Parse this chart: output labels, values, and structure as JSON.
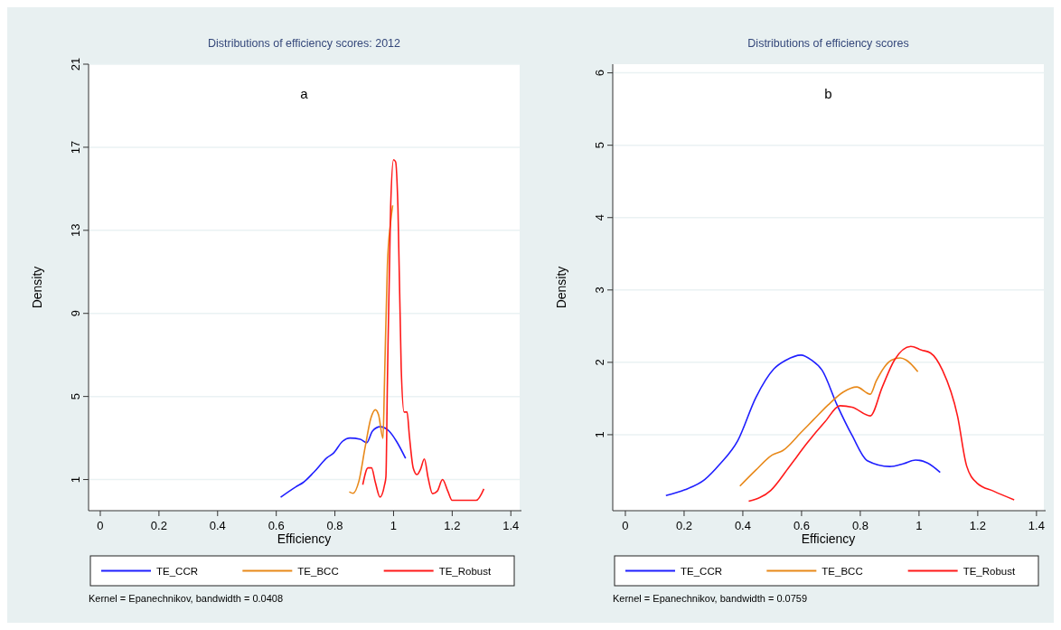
{
  "chart_data": [
    {
      "type": "line",
      "title": "Distributions of efficiency scores: 2012",
      "xlabel": "Efficiency",
      "ylabel": "Density",
      "annotations": [
        "a",
        "Kernel = Epanechnikov, bandwidth = 0.0408"
      ],
      "xlim": [
        -0.04,
        1.43
      ],
      "xticks": [
        0,
        0.2,
        0.4,
        0.6,
        0.8,
        1,
        1.2,
        1.4
      ],
      "ylim": [
        -0.5,
        21
      ],
      "yticks": [
        1,
        5,
        9,
        13,
        17,
        21
      ],
      "grid": "y",
      "legend": "bottom",
      "series": [
        {
          "name": "TE_CCR",
          "color": "#1f1fff",
          "x": [
            0.615,
            0.667,
            0.692,
            0.728,
            0.774,
            0.795,
            0.826,
            0.851,
            0.887,
            0.908,
            0.928,
            0.954,
            0.985,
            1.01,
            1.041
          ],
          "values": [
            0.15,
            0.65,
            0.86,
            1.35,
            2.06,
            2.27,
            2.84,
            3.0,
            2.94,
            2.77,
            3.33,
            3.54,
            3.33,
            2.84,
            2.02
          ]
        },
        {
          "name": "TE_BCC",
          "color": "#e8891a",
          "x": [
            0.849,
            0.862,
            0.882,
            0.903,
            0.923,
            0.938,
            0.949,
            0.964,
            0.969,
            0.979,
            0.99,
            0.997
          ],
          "values": [
            0.41,
            0.34,
            0.93,
            2.55,
            3.97,
            4.36,
            4.11,
            2.98,
            5.66,
            11.3,
            13.4,
            14.2
          ]
        },
        {
          "name": "TE_Robust",
          "color": "#ff1a1a",
          "x": [
            0.895,
            0.913,
            0.925,
            0.938,
            0.954,
            0.969,
            0.974,
            0.979,
            0.99,
            1.0,
            1.007,
            1.015,
            1.026,
            1.036,
            1.046,
            1.054,
            1.067,
            1.08,
            1.092,
            1.105,
            1.118,
            1.133,
            1.149,
            1.167,
            1.185,
            1.2,
            1.282,
            1.308
          ],
          "values": [
            0.75,
            1.56,
            1.56,
            0.86,
            0.15,
            0.72,
            1.14,
            5.66,
            14.1,
            16.4,
            16.3,
            14.1,
            6.4,
            4.25,
            4.25,
            3.1,
            1.56,
            1.24,
            1.5,
            1.99,
            1.07,
            0.32,
            0.44,
            1.0,
            0.44,
            0.0,
            0.0,
            0.55
          ]
        }
      ]
    },
    {
      "type": "line",
      "title": "Distributions of efficiency scores",
      "xlabel": "Efficiency",
      "ylabel": "Density",
      "annotations": [
        "b",
        "Kernel = Epanechnikov, bandwidth = 0.0759"
      ],
      "xlim": [
        -0.043,
        1.425
      ],
      "xticks": [
        0,
        0.2,
        0.4,
        0.6,
        0.8,
        1,
        1.2,
        1.4
      ],
      "ylim": [
        -0.05,
        6.12
      ],
      "yticks": [
        1,
        2,
        3,
        4,
        5,
        6
      ],
      "grid": "y",
      "legend": "bottom",
      "series": [
        {
          "name": "TE_CCR",
          "color": "#1f1fff",
          "x": [
            0.138,
            0.203,
            0.27,
            0.321,
            0.383,
            0.444,
            0.506,
            0.547,
            0.598,
            0.634,
            0.67,
            0.721,
            0.772,
            0.824,
            0.9,
            0.947,
            0.988,
            1.029,
            1.072
          ],
          "values": [
            0.16,
            0.24,
            0.38,
            0.59,
            0.92,
            1.51,
            1.91,
            2.03,
            2.1,
            2.03,
            1.89,
            1.41,
            0.99,
            0.64,
            0.56,
            0.6,
            0.65,
            0.61,
            0.48
          ]
        },
        {
          "name": "TE_BCC",
          "color": "#e8891a",
          "x": [
            0.39,
            0.444,
            0.5,
            0.536,
            0.598,
            0.639,
            0.69,
            0.742,
            0.788,
            0.834,
            0.854,
            0.906,
            0.936,
            0.957,
            0.996
          ],
          "values": [
            0.29,
            0.51,
            0.72,
            0.78,
            1.03,
            1.2,
            1.41,
            1.59,
            1.66,
            1.56,
            1.74,
            2.03,
            2.06,
            2.03,
            1.87
          ]
        },
        {
          "name": "TE_Robust",
          "color": "#ff1a1a",
          "x": [
            0.42,
            0.495,
            0.557,
            0.618,
            0.68,
            0.731,
            0.772,
            0.834,
            0.875,
            0.916,
            0.972,
            1.008,
            1.039,
            1.08,
            1.131,
            1.162,
            1.198,
            1.254,
            1.324
          ],
          "values": [
            0.08,
            0.23,
            0.55,
            0.88,
            1.18,
            1.4,
            1.38,
            1.26,
            1.66,
            2.03,
            2.22,
            2.17,
            2.13,
            1.89,
            1.26,
            0.57,
            0.33,
            0.22,
            0.1
          ]
        }
      ]
    }
  ]
}
